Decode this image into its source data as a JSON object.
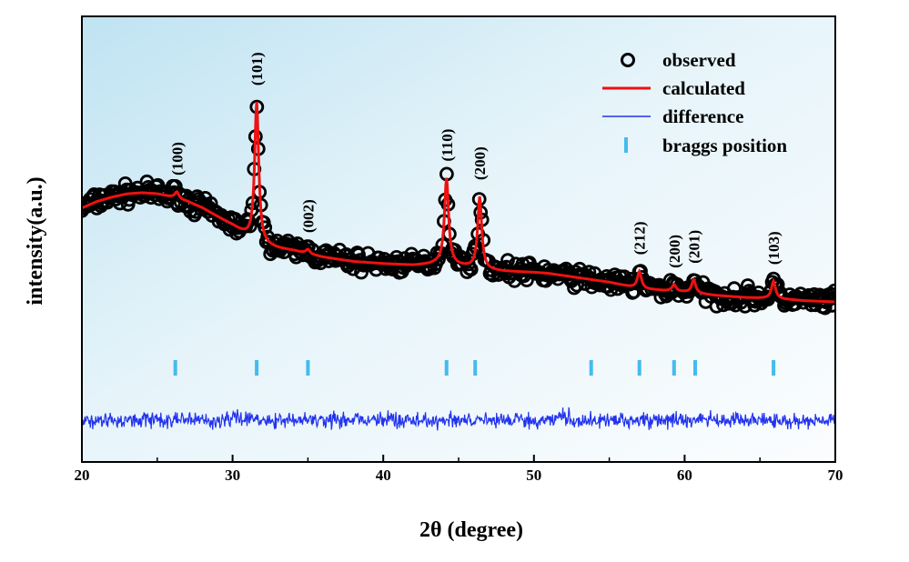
{
  "chart_data": {
    "type": "line",
    "xlabel": "2θ (degree)",
    "ylabel": "intensity(a.u.)",
    "xlim": [
      20,
      70
    ],
    "xticks": [
      "20",
      "30",
      "40",
      "50",
      "60",
      "70"
    ],
    "y_ticks_shown": false,
    "grid": false,
    "background": "light blue gradient",
    "legend_position": "top-right",
    "series": [
      {
        "name": "observed",
        "marker": "open-circle",
        "color": "#000000"
      },
      {
        "name": "calculated",
        "line": "solid",
        "color": "#ee1111"
      },
      {
        "name": "difference",
        "line": "thin",
        "color": "#2233ee"
      },
      {
        "name": "braggs position",
        "marker": "vertical-tick",
        "color": "#44bbee"
      }
    ],
    "calculated_profile": {
      "x": [
        20,
        21,
        22,
        23,
        24,
        25,
        26,
        27,
        28,
        29,
        30,
        31,
        32,
        33,
        34,
        35,
        36,
        37,
        38,
        40,
        42,
        43,
        44,
        45,
        46,
        47,
        48,
        50,
        51,
        52,
        53,
        55,
        56,
        57,
        58,
        59,
        60,
        62,
        64,
        66,
        68,
        70
      ],
      "y": [
        0.63,
        0.66,
        0.68,
        0.695,
        0.7,
        0.695,
        0.68,
        0.66,
        0.63,
        0.59,
        0.55,
        0.5,
        0.46,
        0.445,
        0.435,
        0.42,
        0.405,
        0.395,
        0.385,
        0.375,
        0.368,
        0.372,
        0.38,
        0.365,
        0.355,
        0.345,
        0.34,
        0.335,
        0.33,
        0.32,
        0.31,
        0.29,
        0.275,
        0.26,
        0.255,
        0.25,
        0.245,
        0.23,
        0.22,
        0.215,
        0.205,
        0.2
      ]
    },
    "peaks": [
      {
        "x": 26.3,
        "label": "(100)",
        "height": 0.03
      },
      {
        "x": 31.6,
        "label": "(101)",
        "height": 0.64
      },
      {
        "x": 35.0,
        "label": "(002)",
        "height": 0.02
      },
      {
        "x": 44.2,
        "label": "(110)",
        "height": 0.39
      },
      {
        "x": 46.4,
        "label": "(200)",
        "height": 0.33
      },
      {
        "x": 57.0,
        "label": "(212)",
        "height": 0.08
      },
      {
        "x": 59.3,
        "label": "(200)",
        "height": 0.03
      },
      {
        "x": 60.6,
        "label": "(201)",
        "height": 0.06
      },
      {
        "x": 65.9,
        "label": "(103)",
        "height": 0.08
      }
    ],
    "bragg_positions": [
      26.2,
      31.6,
      35.0,
      44.2,
      46.1,
      53.8,
      57.0,
      59.3,
      60.7,
      65.9
    ],
    "difference_baseline": 0.0
  }
}
